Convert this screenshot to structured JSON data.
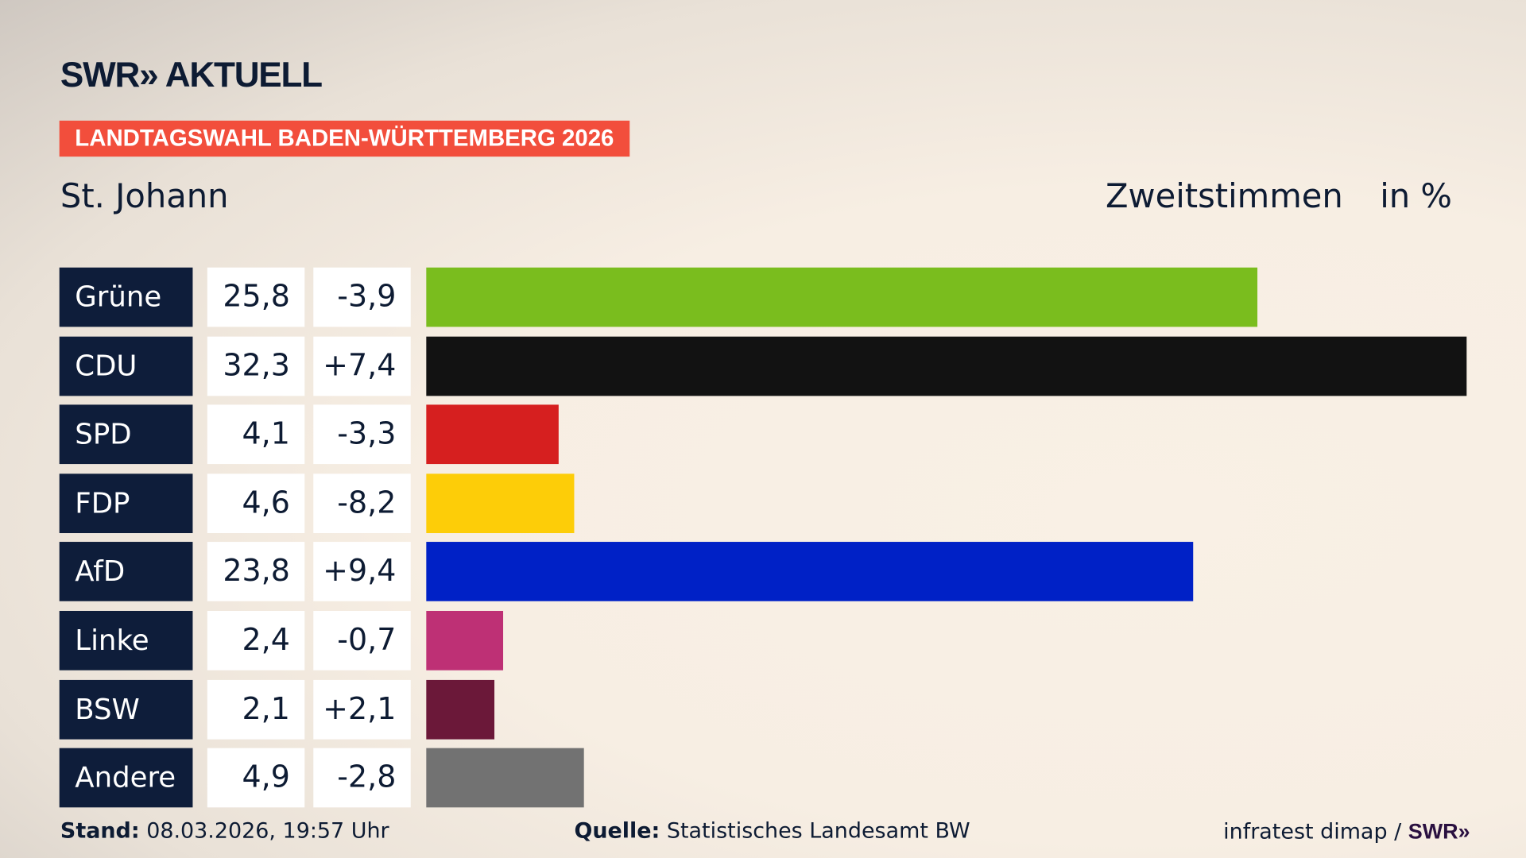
{
  "header": {
    "logo": "SWR» AKTUELL",
    "banner": "LANDTAGSWAHL BADEN-WÜRTTEMBERG 2026",
    "district": "St. Johann",
    "metric": "Zweitstimmen",
    "unit": "in %"
  },
  "chart_data": {
    "type": "bar",
    "orientation": "horizontal",
    "categories": [
      "Grüne",
      "CDU",
      "SPD",
      "FDP",
      "AfD",
      "Linke",
      "BSW",
      "Andere"
    ],
    "values": [
      25.8,
      32.3,
      4.1,
      4.6,
      23.8,
      2.4,
      2.1,
      4.9
    ],
    "value_labels": [
      "25,8",
      "32,3",
      "4,1",
      "4,6",
      "23,8",
      "2,4",
      "2,1",
      "4,9"
    ],
    "changes": [
      -3.9,
      7.4,
      -3.3,
      -8.2,
      9.4,
      -0.7,
      2.1,
      -2.8
    ],
    "change_labels": [
      "-3,9",
      "+7,4",
      "-3,3",
      "-8,2",
      "+9,4",
      "-0,7",
      "+2,1",
      "-2,8"
    ],
    "colors": [
      "#7abd1e",
      "#121212",
      "#d61f1f",
      "#fdcd08",
      "#0021c6",
      "#be3075",
      "#6b1839",
      "#727272"
    ],
    "xlim": [
      0,
      32.3
    ],
    "grid": false
  },
  "footer": {
    "stand_label": "Stand:",
    "stand_value": "08.03.2026, 19:57 Uhr",
    "quelle_label": "Quelle:",
    "quelle_value": "Statistisches Landesamt BW",
    "credit": "infratest dimap / ",
    "credit_logo": "SWR»"
  }
}
